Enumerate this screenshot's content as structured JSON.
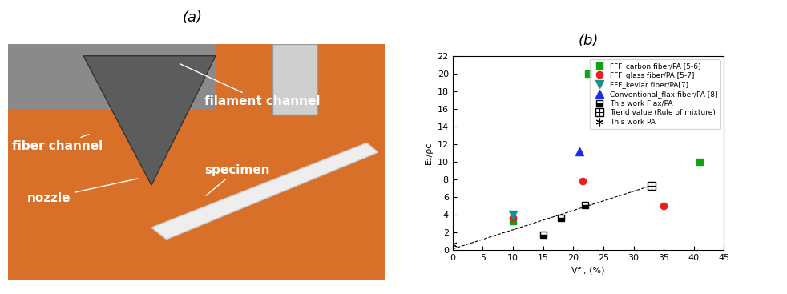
{
  "photo": {
    "label": "(a)",
    "annotations": [
      "fiber channel",
      "filament channel",
      "nozzle",
      "specimen"
    ]
  },
  "chart_data": {
    "type": "scatter",
    "title": "(b)",
    "x_label": "Vf , (%)",
    "y_label": "E₁/ρc",
    "xlim": [
      0,
      45
    ],
    "xticks": [
      0,
      5,
      10,
      15,
      20,
      25,
      30,
      35,
      40,
      45
    ],
    "ylim": [
      0,
      22
    ],
    "yticks": [
      0,
      2,
      4,
      6,
      8,
      10,
      12,
      14,
      16,
      18,
      20,
      22
    ],
    "legend": "upper right",
    "series": [
      {
        "name": "FFF_carbon fiber/PA [5-6]",
        "color": "#12a312",
        "marker": "square",
        "x": [
          10,
          22.5,
          41
        ],
        "values": [
          3.3,
          20.0,
          10.0
        ]
      },
      {
        "name": "FFF_glass fiber/PA [5-7]",
        "color": "#e8201c",
        "marker": "circle",
        "x": [
          10,
          21.5,
          35
        ],
        "values": [
          3.6,
          7.8,
          5.0
        ]
      },
      {
        "name": "FFF_kevlar fiber/PA[7]",
        "color": "#14938c",
        "marker": "triangle_down",
        "x": [
          10
        ],
        "values": [
          4.0
        ]
      },
      {
        "name": "Conventional_flax fiber/PA [8]",
        "color": "#1a2ee6",
        "marker": "triangle_up",
        "x": [
          21
        ],
        "values": [
          11.2
        ]
      },
      {
        "name": "This work Flax/PA",
        "color": "#000000",
        "marker": "half_square",
        "x": [
          15,
          18,
          22
        ],
        "values": [
          1.7,
          3.6,
          5.1
        ]
      },
      {
        "name": "Trend value (Rule of mixture)",
        "color": "#000000",
        "marker": "square_plus",
        "x": [
          33
        ],
        "values": [
          7.3
        ],
        "trend_line": {
          "x": [
            0,
            33
          ],
          "values": [
            0.1,
            7.3
          ],
          "line_style": "dashed"
        }
      },
      {
        "name": "This work PA",
        "color": "#000000",
        "marker": "asterisk",
        "x": [
          0
        ],
        "values": [
          0.6
        ]
      }
    ]
  }
}
